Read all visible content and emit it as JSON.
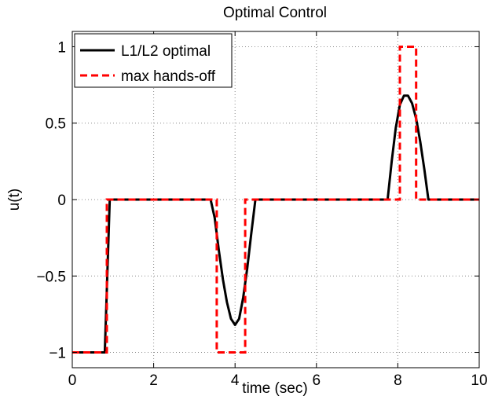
{
  "chart_data": {
    "type": "line",
    "title": "Optimal Control",
    "xlabel": "time (sec)",
    "ylabel": "u(t)",
    "xlim": [
      0,
      10
    ],
    "ylim": [
      -1.1,
      1.1
    ],
    "grid": true,
    "grid_style": "dotted",
    "legend_position": "top-left",
    "x_ticks": [
      0,
      2,
      4,
      6,
      8,
      10
    ],
    "x_tick_labels": [
      "0",
      "2",
      "4",
      "6",
      "8",
      "10"
    ],
    "y_ticks": [
      -1,
      -0.5,
      0,
      0.5,
      1
    ],
    "y_tick_labels": [
      "−1",
      "−0.5",
      "0",
      "0.5",
      "1"
    ],
    "series": [
      {
        "name": "L1/L2 optimal",
        "color": "#000000",
        "line_style": "solid",
        "x": [
          0,
          0.8,
          0.92,
          3.4,
          3.5,
          3.6,
          3.7,
          3.8,
          3.9,
          4.0,
          4.1,
          4.2,
          4.3,
          4.4,
          4.5,
          7.75,
          7.85,
          7.95,
          8.05,
          8.15,
          8.25,
          8.35,
          8.45,
          8.55,
          8.65,
          8.75,
          10
        ],
        "y": [
          -1,
          -1,
          0,
          0,
          -0.12,
          -0.33,
          -0.52,
          -0.67,
          -0.78,
          -0.82,
          -0.78,
          -0.64,
          -0.45,
          -0.22,
          0,
          0,
          0.25,
          0.47,
          0.62,
          0.68,
          0.68,
          0.63,
          0.53,
          0.38,
          0.2,
          0,
          0
        ]
      },
      {
        "name": "max hands-off",
        "color": "#ff0000",
        "line_style": "dashed",
        "x": [
          0,
          0.85,
          0.85,
          3.55,
          3.55,
          4.25,
          4.25,
          8.05,
          8.05,
          8.45,
          8.45,
          10
        ],
        "y": [
          -1,
          -1,
          0,
          0,
          -1,
          -1,
          0,
          0,
          1,
          1,
          0,
          0
        ]
      }
    ]
  }
}
